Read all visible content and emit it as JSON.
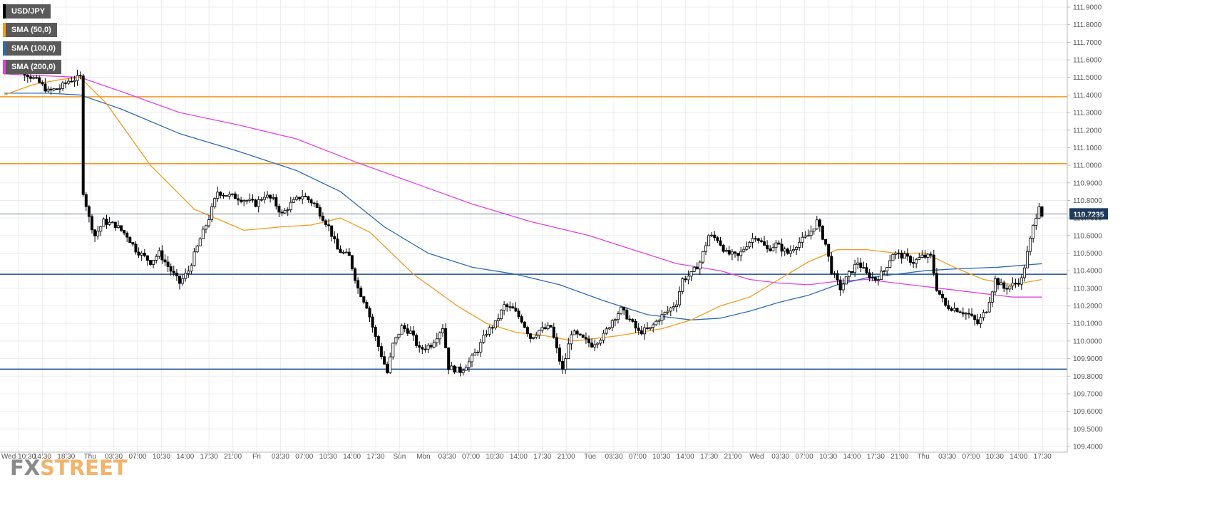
{
  "chart_data": {
    "type": "candlestick",
    "symbol": "USD/JPY",
    "legend": [
      {
        "label": "USD/JPY",
        "color": "#000000"
      },
      {
        "label": "SMA (50,0)",
        "color": "#f39a1f"
      },
      {
        "label": "SMA (100,0)",
        "color": "#2e6bb4"
      },
      {
        "label": "SMA (200,0)",
        "color": "#e342e3"
      }
    ],
    "y_axis": {
      "min": 109.4,
      "max": 111.9,
      "step": 0.1,
      "side": "right",
      "ticks": [
        "111.9000",
        "111.8000",
        "111.7000",
        "111.6000",
        "111.5000",
        "111.4000",
        "111.3000",
        "111.2000",
        "111.1000",
        "111.0000",
        "110.9000",
        "110.8000",
        "110.7000",
        "110.6000",
        "110.5000",
        "110.4000",
        "110.3000",
        "110.2000",
        "110.1000",
        "110.0000",
        "109.9000",
        "109.8000",
        "109.7000",
        "109.6000",
        "109.5000",
        "109.4000"
      ]
    },
    "x_axis": {
      "labels": [
        "Wed 10:30",
        "14:30",
        "18:30",
        "Thu",
        "03:30",
        "07:00",
        "10:30",
        "14:00",
        "17:30",
        "21:00",
        "Fri",
        "03:30",
        "07:00",
        "10:30",
        "14:00",
        "17:30",
        "Sun",
        "Mon",
        "03:30",
        "07:00",
        "10:30",
        "14:00",
        "17:30",
        "21:00",
        "Tue",
        "03:30",
        "07:00",
        "10:30",
        "14:00",
        "17:30",
        "21:00",
        "Wed",
        "03:30",
        "07:00",
        "10:30",
        "14:00",
        "17:30",
        "21:00",
        "Thu",
        "03:30",
        "07:00",
        "10:30",
        "14:00",
        "17:30"
      ]
    },
    "last_price": {
      "label": "110.7235",
      "value": 110.7235,
      "color": "#1c3a5e"
    },
    "levels": [
      {
        "value": 111.39,
        "color": "#f39a1f",
        "kind": "resistance"
      },
      {
        "value": 111.01,
        "color": "#f39a1f",
        "kind": "resistance"
      },
      {
        "value": 110.38,
        "color": "#1f4d8f",
        "kind": "support"
      },
      {
        "value": 109.84,
        "color": "#1f4d8f",
        "kind": "support"
      }
    ],
    "close_path": [
      [
        0,
        111.57
      ],
      [
        6,
        111.54
      ],
      [
        12,
        111.47
      ],
      [
        15,
        111.42
      ],
      [
        19,
        111.44
      ],
      [
        22,
        111.48
      ],
      [
        26,
        111.5
      ],
      [
        27,
        110.85
      ],
      [
        29,
        110.7
      ],
      [
        31,
        110.6
      ],
      [
        34,
        110.68
      ],
      [
        38,
        110.66
      ],
      [
        42,
        110.6
      ],
      [
        45,
        110.52
      ],
      [
        50,
        110.45
      ],
      [
        53,
        110.5
      ],
      [
        57,
        110.4
      ],
      [
        60,
        110.33
      ],
      [
        63,
        110.4
      ],
      [
        67,
        110.58
      ],
      [
        70,
        110.7
      ],
      [
        73,
        110.85
      ],
      [
        76,
        110.83
      ],
      [
        79,
        110.82
      ],
      [
        83,
        110.8
      ],
      [
        86,
        110.78
      ],
      [
        89,
        110.83
      ],
      [
        92,
        110.8
      ],
      [
        95,
        110.72
      ],
      [
        98,
        110.78
      ],
      [
        102,
        110.83
      ],
      [
        106,
        110.78
      ],
      [
        111,
        110.65
      ],
      [
        114,
        110.52
      ],
      [
        118,
        110.48
      ],
      [
        121,
        110.3
      ],
      [
        124,
        110.2
      ],
      [
        127,
        110.02
      ],
      [
        129,
        109.92
      ],
      [
        131,
        109.82
      ],
      [
        133,
        109.98
      ],
      [
        136,
        110.08
      ],
      [
        139,
        110.05
      ],
      [
        142,
        109.95
      ],
      [
        146,
        109.98
      ],
      [
        150,
        110.08
      ],
      [
        152,
        109.85
      ],
      [
        156,
        109.83
      ],
      [
        159,
        109.88
      ],
      [
        162,
        109.95
      ],
      [
        165,
        110.05
      ],
      [
        168,
        110.1
      ],
      [
        171,
        110.2
      ],
      [
        174,
        110.18
      ],
      [
        177,
        110.12
      ],
      [
        180,
        110.02
      ],
      [
        183,
        110.06
      ],
      [
        187,
        110.08
      ],
      [
        189,
        109.95
      ],
      [
        191,
        109.83
      ],
      [
        194,
        110.05
      ],
      [
        197,
        110.02
      ],
      [
        201,
        109.98
      ],
      [
        205,
        110.03
      ],
      [
        208,
        110.12
      ],
      [
        211,
        110.18
      ],
      [
        214,
        110.12
      ],
      [
        217,
        110.05
      ],
      [
        221,
        110.07
      ],
      [
        224,
        110.13
      ],
      [
        227,
        110.17
      ],
      [
        230,
        110.22
      ],
      [
        232,
        110.35
      ],
      [
        235,
        110.38
      ],
      [
        238,
        110.45
      ],
      [
        241,
        110.6
      ],
      [
        244,
        110.58
      ],
      [
        247,
        110.5
      ],
      [
        251,
        110.48
      ],
      [
        254,
        110.55
      ],
      [
        257,
        110.6
      ],
      [
        261,
        110.52
      ],
      [
        264,
        110.55
      ],
      [
        268,
        110.5
      ],
      [
        271,
        110.55
      ],
      [
        275,
        110.6
      ],
      [
        278,
        110.68
      ],
      [
        281,
        110.55
      ],
      [
        283,
        110.4
      ],
      [
        286,
        110.3
      ],
      [
        289,
        110.38
      ],
      [
        292,
        110.45
      ],
      [
        295,
        110.38
      ],
      [
        298,
        110.35
      ],
      [
        301,
        110.4
      ],
      [
        304,
        110.5
      ],
      [
        308,
        110.48
      ],
      [
        311,
        110.45
      ],
      [
        314,
        110.48
      ],
      [
        317,
        110.48
      ],
      [
        319,
        110.3
      ],
      [
        322,
        110.2
      ],
      [
        326,
        110.18
      ],
      [
        330,
        110.15
      ],
      [
        333,
        110.1
      ],
      [
        336,
        110.18
      ],
      [
        339,
        110.35
      ],
      [
        342,
        110.3
      ],
      [
        345,
        110.32
      ],
      [
        348,
        110.35
      ],
      [
        350,
        110.5
      ],
      [
        352,
        110.65
      ],
      [
        354,
        110.78
      ],
      [
        355,
        110.72
      ]
    ],
    "sma50_path": [
      [
        0,
        111.4
      ],
      [
        10,
        111.46
      ],
      [
        20,
        111.49
      ],
      [
        26,
        111.5
      ],
      [
        35,
        111.35
      ],
      [
        50,
        111.0
      ],
      [
        65,
        110.75
      ],
      [
        75,
        110.68
      ],
      [
        82,
        110.63
      ],
      [
        95,
        110.65
      ],
      [
        105,
        110.66
      ],
      [
        115,
        110.7
      ],
      [
        125,
        110.62
      ],
      [
        140,
        110.38
      ],
      [
        155,
        110.2
      ],
      [
        165,
        110.1
      ],
      [
        175,
        110.05
      ],
      [
        185,
        110.03
      ],
      [
        195,
        110.0
      ],
      [
        210,
        110.03
      ],
      [
        225,
        110.07
      ],
      [
        235,
        110.12
      ],
      [
        245,
        110.2
      ],
      [
        255,
        110.25
      ],
      [
        265,
        110.35
      ],
      [
        275,
        110.45
      ],
      [
        285,
        110.52
      ],
      [
        295,
        110.52
      ],
      [
        305,
        110.5
      ],
      [
        315,
        110.5
      ],
      [
        325,
        110.42
      ],
      [
        335,
        110.35
      ],
      [
        345,
        110.32
      ],
      [
        355,
        110.35
      ]
    ],
    "sma100_path": [
      [
        0,
        111.41
      ],
      [
        15,
        111.41
      ],
      [
        26,
        111.4
      ],
      [
        40,
        111.32
      ],
      [
        60,
        111.18
      ],
      [
        80,
        111.08
      ],
      [
        100,
        110.97
      ],
      [
        115,
        110.85
      ],
      [
        130,
        110.65
      ],
      [
        145,
        110.5
      ],
      [
        160,
        110.42
      ],
      [
        175,
        110.38
      ],
      [
        190,
        110.32
      ],
      [
        205,
        110.23
      ],
      [
        220,
        110.15
      ],
      [
        235,
        110.12
      ],
      [
        245,
        110.13
      ],
      [
        255,
        110.17
      ],
      [
        265,
        110.22
      ],
      [
        275,
        110.26
      ],
      [
        285,
        110.32
      ],
      [
        295,
        110.36
      ],
      [
        305,
        110.38
      ],
      [
        315,
        110.4
      ],
      [
        325,
        110.41
      ],
      [
        340,
        110.42
      ],
      [
        355,
        110.44
      ]
    ],
    "sma200_path": [
      [
        0,
        111.52
      ],
      [
        26,
        111.5
      ],
      [
        40,
        111.42
      ],
      [
        60,
        111.3
      ],
      [
        80,
        111.23
      ],
      [
        100,
        111.15
      ],
      [
        120,
        111.02
      ],
      [
        140,
        110.9
      ],
      [
        160,
        110.78
      ],
      [
        180,
        110.68
      ],
      [
        200,
        110.6
      ],
      [
        215,
        110.52
      ],
      [
        230,
        110.44
      ],
      [
        245,
        110.4
      ],
      [
        255,
        110.35
      ],
      [
        265,
        110.33
      ],
      [
        275,
        110.32
      ],
      [
        285,
        110.34
      ],
      [
        295,
        110.35
      ],
      [
        305,
        110.33
      ],
      [
        315,
        110.31
      ],
      [
        325,
        110.29
      ],
      [
        335,
        110.27
      ],
      [
        345,
        110.25
      ],
      [
        355,
        110.25
      ]
    ]
  },
  "brand": {
    "fx": "FX",
    "street": "STREET"
  }
}
